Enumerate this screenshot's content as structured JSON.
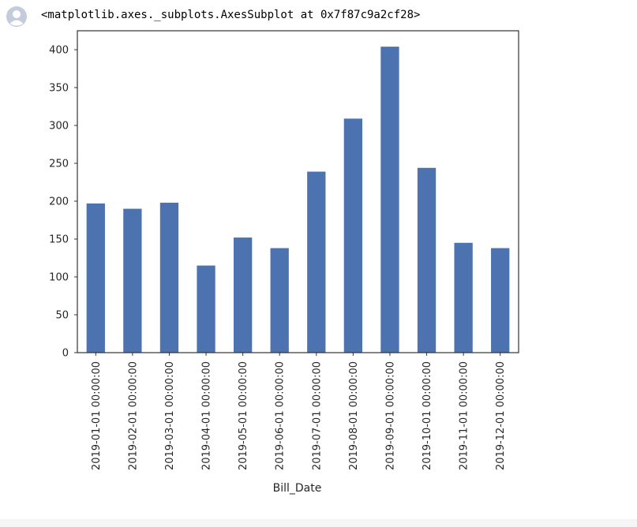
{
  "cell": {
    "output_repr": "<matplotlib.axes._subplots.AxesSubplot at 0x7f87c9a2cf28>",
    "avatar_icon": "user-avatar-icon"
  },
  "chart_data": {
    "type": "bar",
    "categories": [
      "2019-01-01 00:00:00",
      "2019-02-01 00:00:00",
      "2019-03-01 00:00:00",
      "2019-04-01 00:00:00",
      "2019-05-01 00:00:00",
      "2019-06-01 00:00:00",
      "2019-07-01 00:00:00",
      "2019-08-01 00:00:00",
      "2019-09-01 00:00:00",
      "2019-10-01 00:00:00",
      "2019-11-01 00:00:00",
      "2019-12-01 00:00:00"
    ],
    "values": [
      197,
      190,
      198,
      115,
      152,
      138,
      239,
      309,
      404,
      244,
      145,
      138
    ],
    "yticks": [
      0,
      50,
      100,
      150,
      200,
      250,
      300,
      350,
      400
    ],
    "ylim": [
      0,
      425
    ],
    "xlabel": "Bill_Date",
    "ylabel": "",
    "title": "",
    "bar_color": "#4c72b0",
    "grid": false,
    "x_tick_rotation": "vertical"
  }
}
